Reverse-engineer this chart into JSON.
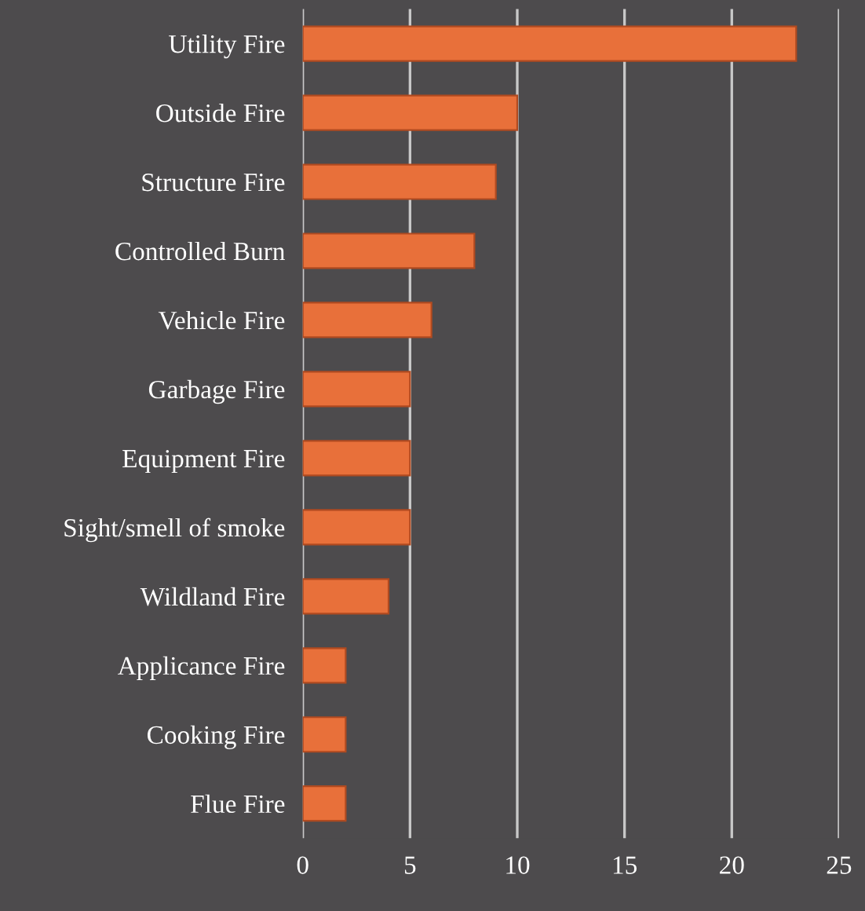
{
  "chart_data": {
    "type": "bar",
    "orientation": "horizontal",
    "categories": [
      "Utility Fire",
      "Outside Fire",
      "Structure Fire",
      "Controlled Burn",
      "Vehicle Fire",
      "Garbage Fire",
      "Equipment Fire",
      "Sight/smell of smoke",
      "Wildland Fire",
      "Applicance Fire",
      "Cooking Fire",
      "Flue Fire"
    ],
    "values": [
      23,
      10,
      9,
      8,
      6,
      5,
      5,
      5,
      4,
      2,
      2,
      2
    ],
    "color": "#e8703a",
    "xlim": [
      0,
      25
    ],
    "xticks": [
      0,
      5,
      10,
      15,
      20,
      25
    ],
    "grid": "x"
  }
}
